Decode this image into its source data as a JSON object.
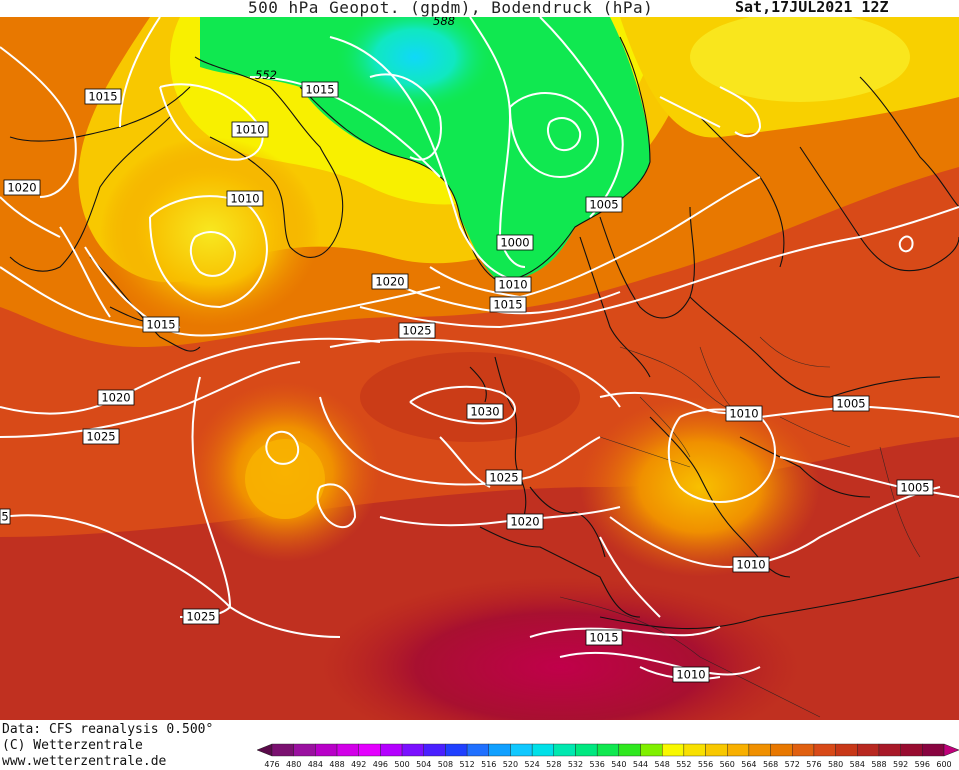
{
  "title": "500 hPa Geopot. (gpdm), Bodendruck (hPa)",
  "date": "Sat,17JUL2021  12Z",
  "credits": [
    "Data: CFS reanalysis 0.500°",
    "(C) Wetterzentrale",
    "www.wetterzentrale.de"
  ],
  "legend": {
    "values": [
      "476",
      "480",
      "484",
      "488",
      "492",
      "496",
      "500",
      "504",
      "508",
      "512",
      "516",
      "520",
      "524",
      "528",
      "532",
      "536",
      "540",
      "544",
      "548",
      "552",
      "556",
      "560",
      "564",
      "568",
      "572",
      "576",
      "580",
      "584",
      "588",
      "592",
      "596",
      "600"
    ],
    "colors": [
      "#5a0a4a",
      "#7a1070",
      "#9a10a0",
      "#b800c8",
      "#d200e8",
      "#e400ff",
      "#b400ff",
      "#7a10ff",
      "#4a20ff",
      "#2040ff",
      "#2070ff",
      "#10a0ff",
      "#10c8ff",
      "#00e0e8",
      "#00e8b0",
      "#00e880",
      "#10e850",
      "#30e820",
      "#80f000",
      "#f8f800",
      "#f8e000",
      "#f8c800",
      "#f8b000",
      "#f09000",
      "#e87800",
      "#e06010",
      "#d84a18",
      "#c83818",
      "#b82820",
      "#a81828",
      "#980c30",
      "#880440",
      "#c0007a"
    ]
  },
  "isobar_labels": [
    {
      "text": "1015"
    },
    {
      "text": "552"
    },
    {
      "text": "1015"
    },
    {
      "text": "1010"
    },
    {
      "text": "1020"
    },
    {
      "text": "1010"
    },
    {
      "text": "1005"
    },
    {
      "text": "1000"
    },
    {
      "text": "1010"
    },
    {
      "text": "1015"
    },
    {
      "text": "1020"
    },
    {
      "text": "1015"
    },
    {
      "text": "1025"
    },
    {
      "text": "1020"
    },
    {
      "text": "1030"
    },
    {
      "text": "1025"
    },
    {
      "text": "1010"
    },
    {
      "text": "1005"
    },
    {
      "text": "1025"
    },
    {
      "text": "1005"
    },
    {
      "text": "5"
    },
    {
      "text": "1020"
    },
    {
      "text": "1010"
    },
    {
      "text": "1025"
    },
    {
      "text": "1015"
    },
    {
      "text": "1010"
    },
    {
      "text": "588"
    }
  ]
}
